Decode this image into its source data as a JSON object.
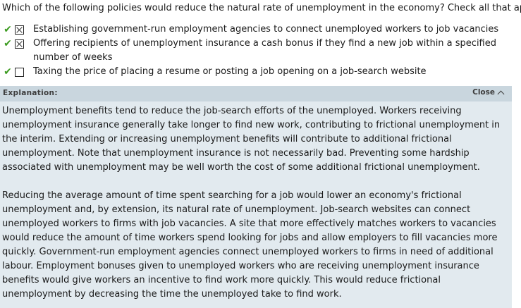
{
  "question": {
    "text": "Which of the following policies would reduce the natural rate of unemployment in the economy? Check all that apply."
  },
  "options": [
    {
      "label": "Establishing government-run employment agencies to connect unemployed workers to job vacancies",
      "checked": true,
      "correct_mark": "✔"
    },
    {
      "label": "Offering recipients of unemployment insurance a cash bonus if they find a new job within a specified number of weeks",
      "checked": true,
      "correct_mark": "✔"
    },
    {
      "label": "Taxing the price of placing a resume or posting a job opening on a job-search website",
      "checked": false,
      "correct_mark": "✔"
    }
  ],
  "explanation": {
    "title": "Explanation:",
    "close_label": "Close",
    "paragraphs": [
      "Unemployment benefits tend to reduce the job-search efforts of the unemployed. Workers receiving unemployment insurance generally take longer to find new work, contributing to frictional unemployment in the interim. Extending or increasing unemployment benefits will contribute to additional frictional unemployment. Note that unemployment insurance is not necessarily bad. Preventing some hardship associated with unemployment may be well worth the cost of some additional frictional unemployment.",
      "Reducing the average amount of time spent searching for a job would lower an economy's frictional unemployment and, by extension, its natural rate of unemployment. Job-search websites can connect unemployed workers to firms with job vacancies. A site that more effectively matches workers to vacancies would reduce the amount of time workers spend looking for jobs and allow employers to fill vacancies more quickly. Government-run employment agencies connect unemployed workers to firms in need of additional labour. Employment bonuses given to unemployed workers who are receiving unemployment insurance benefits would give workers an incentive to find work more quickly. This would reduce frictional unemployment by decreasing the time the unemployed take to find work."
    ]
  },
  "colors": {
    "correct_check": "#3a9a1e",
    "explanation_bg": "#e2eaef",
    "explanation_header_bg": "#c9d6de"
  }
}
